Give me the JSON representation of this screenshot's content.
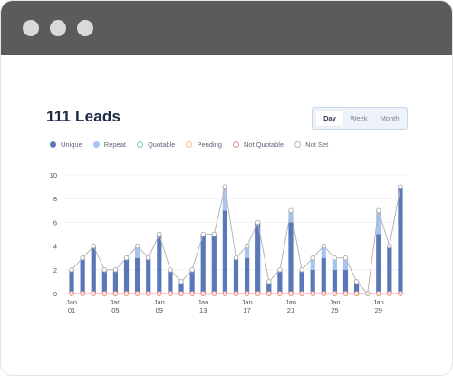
{
  "title": "111 Leads",
  "range_tabs": [
    {
      "label": "Day",
      "active": true
    },
    {
      "label": "Week",
      "active": false
    },
    {
      "label": "Month",
      "active": false
    }
  ],
  "legend": [
    {
      "label": "Unique",
      "color": "#5a78b8",
      "style": "filled"
    },
    {
      "label": "Repeat",
      "color": "#a8c3ef",
      "style": "filled"
    },
    {
      "label": "Quotable",
      "color": "#7fd1a4",
      "style": "outline"
    },
    {
      "label": "Pending",
      "color": "#f5c27a",
      "style": "outline"
    },
    {
      "label": "Not Quotable",
      "color": "#f08a8a",
      "style": "outline"
    },
    {
      "label": "Not Set",
      "color": "#b5b5b5",
      "style": "outline"
    }
  ],
  "chart_data": {
    "type": "bar",
    "stacked": true,
    "title": "",
    "xlabel": "",
    "ylabel": "",
    "ylim": [
      0,
      10
    ],
    "yticks": [
      0,
      2,
      4,
      6,
      8,
      10
    ],
    "grid": true,
    "x_tick_labels": [
      {
        "index": 0,
        "month": "Jan",
        "day": "01"
      },
      {
        "index": 4,
        "month": "Jan",
        "day": "05"
      },
      {
        "index": 8,
        "month": "Jan",
        "day": "09"
      },
      {
        "index": 12,
        "month": "Jan",
        "day": "13"
      },
      {
        "index": 16,
        "month": "Jan",
        "day": "17"
      },
      {
        "index": 20,
        "month": "Jan",
        "day": "21"
      },
      {
        "index": 24,
        "month": "Jan",
        "day": "25"
      },
      {
        "index": 28,
        "month": "Jan",
        "day": "29"
      }
    ],
    "categories": [
      "Jan 01",
      "Jan 02",
      "Jan 03",
      "Jan 04",
      "Jan 05",
      "Jan 06",
      "Jan 07",
      "Jan 08",
      "Jan 09",
      "Jan 10",
      "Jan 11",
      "Jan 12",
      "Jan 13",
      "Jan 14",
      "Jan 15",
      "Jan 16",
      "Jan 17",
      "Jan 18",
      "Jan 19",
      "Jan 20",
      "Jan 21",
      "Jan 22",
      "Jan 23",
      "Jan 24",
      "Jan 25",
      "Jan 26",
      "Jan 27",
      "Jan 28",
      "Jan 29",
      "Jan 30",
      "Jan 31"
    ],
    "series": [
      {
        "name": "Unique",
        "kind": "bar",
        "color": "#5a78b8",
        "values": [
          2,
          3,
          4,
          2,
          2,
          3,
          3,
          3,
          5,
          2,
          1,
          2,
          5,
          5,
          7,
          3,
          3,
          6,
          1,
          2,
          6,
          2,
          2,
          3,
          2,
          2,
          1,
          0,
          5,
          4,
          9
        ]
      },
      {
        "name": "Repeat",
        "kind": "bar",
        "color": "#a8c3ef",
        "values": [
          0,
          0,
          0,
          0,
          0,
          0,
          1,
          0,
          0,
          0,
          0,
          0,
          0,
          0,
          2,
          0,
          1,
          0,
          0,
          0,
          1,
          0,
          1,
          1,
          1,
          1,
          0,
          0,
          2,
          0,
          0
        ]
      },
      {
        "name": "Quotable",
        "kind": "line",
        "color": "#7fd1a4",
        "values": [
          0,
          0,
          0,
          0,
          0,
          0,
          0,
          0,
          0,
          0,
          0,
          0,
          0,
          0,
          0,
          0,
          0,
          0,
          0,
          0,
          0,
          0,
          0,
          0,
          0,
          0,
          0,
          0,
          0,
          0,
          0
        ]
      },
      {
        "name": "Pending",
        "kind": "line",
        "color": "#f5c27a",
        "values": [
          0,
          0,
          0,
          0,
          0,
          0,
          0,
          0,
          0,
          0,
          0,
          0,
          0,
          0,
          0,
          0,
          0,
          0,
          0,
          0,
          0,
          0,
          0,
          0,
          0,
          0,
          0,
          0,
          0,
          0,
          0
        ]
      },
      {
        "name": "Not Quotable",
        "kind": "line",
        "color": "#f08a8a",
        "values": [
          0,
          0,
          0,
          0,
          0,
          0,
          0,
          0,
          0,
          0,
          0,
          0,
          0,
          0,
          0,
          0,
          0,
          0,
          0,
          0,
          0,
          0,
          0,
          0,
          0,
          0,
          0,
          0,
          0,
          0,
          0
        ]
      },
      {
        "name": "Not Set",
        "kind": "line",
        "color": "#b5b5b5",
        "values": [
          2,
          3,
          4,
          2,
          2,
          3,
          4,
          3,
          5,
          2,
          1,
          2,
          5,
          5,
          9,
          3,
          4,
          6,
          1,
          2,
          7,
          2,
          3,
          4,
          3,
          3,
          1,
          0,
          7,
          4,
          9
        ]
      }
    ]
  }
}
